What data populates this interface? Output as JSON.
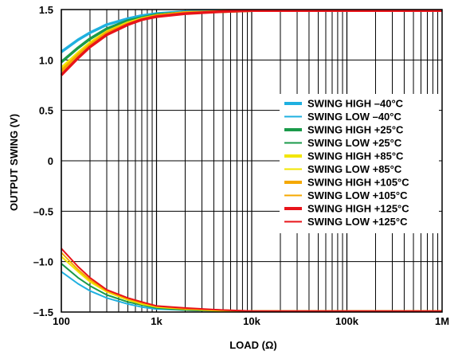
{
  "chart_data": {
    "type": "line",
    "title": "",
    "xlabel": "LOAD (Ω)",
    "ylabel": "OUTPUT SWING (V)",
    "x_scale": "log",
    "xlim": [
      100,
      1000000
    ],
    "ylim": [
      -1.5,
      1.5
    ],
    "grid": true,
    "legend_position": "right",
    "x_ticks": [
      {
        "value": 100,
        "label": "100"
      },
      {
        "value": 1000,
        "label": "1k"
      },
      {
        "value": 10000,
        "label": "10k"
      },
      {
        "value": 100000,
        "label": "100k"
      },
      {
        "value": 1000000,
        "label": "1M"
      }
    ],
    "y_ticks": [
      {
        "value": 1.5,
        "label": "1.5"
      },
      {
        "value": 1.0,
        "label": "1.0"
      },
      {
        "value": 0.5,
        "label": "0.5"
      },
      {
        "value": 0,
        "label": "0"
      },
      {
        "value": -0.5,
        "label": "–0.5"
      },
      {
        "value": -1.0,
        "label": "–1.0"
      },
      {
        "value": -1.5,
        "label": "–1.5"
      }
    ],
    "series": [
      {
        "name": "SWING HIGH –40°C",
        "color": "#1fb0e0",
        "weight": "thick",
        "x": [
          100,
          150,
          200,
          300,
          500,
          700,
          1000,
          2000,
          5000,
          10000,
          100000,
          1000000
        ],
        "y": [
          1.08,
          1.2,
          1.27,
          1.35,
          1.41,
          1.44,
          1.46,
          1.48,
          1.49,
          1.49,
          1.49,
          1.49
        ]
      },
      {
        "name": "SWING LOW –40°C",
        "color": "#1fb0e0",
        "weight": "thin",
        "x": [
          100,
          150,
          200,
          300,
          500,
          700,
          1000,
          2000,
          5000,
          10000,
          100000,
          1000000
        ],
        "y": [
          -1.1,
          -1.22,
          -1.29,
          -1.36,
          -1.42,
          -1.45,
          -1.47,
          -1.48,
          -1.49,
          -1.49,
          -1.49,
          -1.49
        ]
      },
      {
        "name": "SWING HIGH +25°C",
        "color": "#1a9a4a",
        "weight": "thick",
        "x": [
          100,
          150,
          200,
          300,
          500,
          700,
          1000,
          2000,
          5000,
          10000,
          100000,
          1000000
        ],
        "y": [
          0.98,
          1.12,
          1.21,
          1.31,
          1.39,
          1.42,
          1.45,
          1.47,
          1.48,
          1.49,
          1.49,
          1.49
        ]
      },
      {
        "name": "SWING LOW +25°C",
        "color": "#1a9a4a",
        "weight": "thin",
        "x": [
          100,
          150,
          200,
          300,
          500,
          700,
          1000,
          2000,
          5000,
          10000,
          100000,
          1000000
        ],
        "y": [
          -1.02,
          -1.16,
          -1.24,
          -1.33,
          -1.4,
          -1.43,
          -1.46,
          -1.48,
          -1.49,
          -1.49,
          -1.49,
          -1.49
        ]
      },
      {
        "name": "SWING HIGH +85°C",
        "color": "#f2e600",
        "weight": "thick",
        "x": [
          100,
          150,
          200,
          300,
          500,
          700,
          1000,
          2000,
          5000,
          10000,
          100000,
          1000000
        ],
        "y": [
          0.92,
          1.07,
          1.17,
          1.28,
          1.37,
          1.41,
          1.44,
          1.47,
          1.48,
          1.49,
          1.49,
          1.49
        ]
      },
      {
        "name": "SWING LOW +85°C",
        "color": "#f2e600",
        "weight": "thin",
        "x": [
          100,
          150,
          200,
          300,
          500,
          700,
          1000,
          2000,
          5000,
          10000,
          100000,
          1000000
        ],
        "y": [
          -0.95,
          -1.1,
          -1.2,
          -1.3,
          -1.38,
          -1.42,
          -1.45,
          -1.47,
          -1.49,
          -1.49,
          -1.49,
          -1.49
        ]
      },
      {
        "name": "SWING HIGH +105°C",
        "color": "#f5a800",
        "weight": "thick",
        "x": [
          100,
          150,
          200,
          300,
          500,
          700,
          1000,
          2000,
          5000,
          10000,
          100000,
          1000000
        ],
        "y": [
          0.89,
          1.05,
          1.15,
          1.27,
          1.36,
          1.4,
          1.44,
          1.47,
          1.48,
          1.49,
          1.49,
          1.49
        ]
      },
      {
        "name": "SWING LOW +105°C",
        "color": "#f5a800",
        "weight": "thin",
        "x": [
          100,
          150,
          200,
          300,
          500,
          700,
          1000,
          2000,
          5000,
          10000,
          100000,
          1000000
        ],
        "y": [
          -0.91,
          -1.08,
          -1.18,
          -1.29,
          -1.37,
          -1.41,
          -1.44,
          -1.47,
          -1.48,
          -1.49,
          -1.49,
          -1.49
        ]
      },
      {
        "name": "SWING HIGH +125°C",
        "color": "#e8141a",
        "weight": "thick",
        "x": [
          100,
          150,
          200,
          300,
          500,
          700,
          1000,
          2000,
          5000,
          10000,
          100000,
          1000000
        ],
        "y": [
          0.85,
          1.02,
          1.13,
          1.25,
          1.35,
          1.4,
          1.43,
          1.46,
          1.48,
          1.49,
          1.49,
          1.49
        ]
      },
      {
        "name": "SWING LOW +125°C",
        "color": "#e8141a",
        "weight": "thin",
        "x": [
          100,
          150,
          200,
          300,
          500,
          700,
          1000,
          2000,
          5000,
          10000,
          100000,
          1000000
        ],
        "y": [
          -0.87,
          -1.05,
          -1.16,
          -1.28,
          -1.36,
          -1.4,
          -1.44,
          -1.46,
          -1.48,
          -1.49,
          -1.49,
          -1.49
        ]
      }
    ]
  }
}
